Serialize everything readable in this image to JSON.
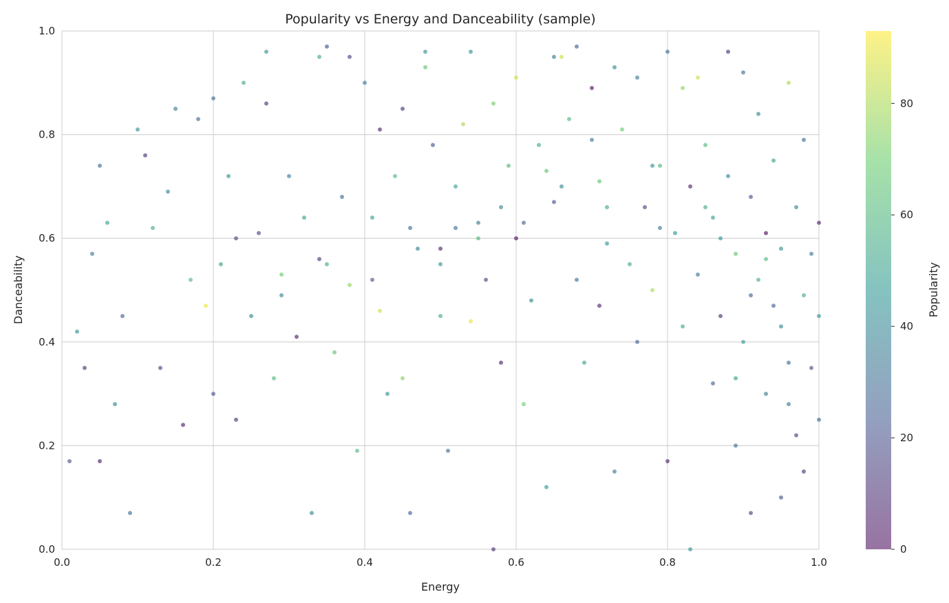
{
  "chart_data": {
    "type": "scatter",
    "title": "Popularity vs Energy and Danceability (sample)",
    "xlabel": "Energy",
    "ylabel": "Danceability",
    "xlim": [
      0,
      1
    ],
    "ylim": [
      0,
      1
    ],
    "xticks": [
      "0.0",
      "0.2",
      "0.4",
      "0.6",
      "0.8",
      "1.0"
    ],
    "yticks": [
      "0.0",
      "0.2",
      "0.4",
      "0.6",
      "0.8",
      "1.0"
    ],
    "grid": true,
    "colormap": "viridis",
    "point_alpha": 0.6,
    "colorbar": {
      "label": "Popularity",
      "range": [
        0,
        93
      ],
      "ticks": [
        "0",
        "20",
        "40",
        "60",
        "80"
      ]
    },
    "points_note_columns": [
      "energy",
      "danceability",
      "popularity"
    ],
    "points": [
      [
        0.01,
        0.17,
        20
      ],
      [
        0.02,
        0.42,
        45
      ],
      [
        0.03,
        0.35,
        10
      ],
      [
        0.04,
        0.57,
        35
      ],
      [
        0.05,
        0.74,
        30
      ],
      [
        0.05,
        0.17,
        5
      ],
      [
        0.06,
        0.63,
        50
      ],
      [
        0.07,
        0.28,
        40
      ],
      [
        0.08,
        0.45,
        25
      ],
      [
        0.09,
        0.07,
        30
      ],
      [
        0.1,
        0.81,
        45
      ],
      [
        0.11,
        0.76,
        10
      ],
      [
        0.12,
        0.62,
        55
      ],
      [
        0.13,
        0.35,
        15
      ],
      [
        0.14,
        0.69,
        40
      ],
      [
        0.15,
        0.85,
        35
      ],
      [
        0.16,
        0.24,
        5
      ],
      [
        0.17,
        0.52,
        60
      ],
      [
        0.18,
        0.83,
        30
      ],
      [
        0.19,
        0.47,
        90
      ],
      [
        0.2,
        0.87,
        30
      ],
      [
        0.2,
        0.3,
        20
      ],
      [
        0.21,
        0.55,
        50
      ],
      [
        0.22,
        0.72,
        45
      ],
      [
        0.23,
        0.25,
        10
      ],
      [
        0.24,
        0.9,
        55
      ],
      [
        0.25,
        0.45,
        40
      ],
      [
        0.26,
        0.61,
        15
      ],
      [
        0.27,
        0.96,
        45
      ],
      [
        0.27,
        0.86,
        10
      ],
      [
        0.28,
        0.33,
        60
      ],
      [
        0.29,
        0.53,
        70
      ],
      [
        0.3,
        0.72,
        35
      ],
      [
        0.31,
        0.41,
        5
      ],
      [
        0.32,
        0.64,
        50
      ],
      [
        0.33,
        0.07,
        40
      ],
      [
        0.34,
        0.56,
        10
      ],
      [
        0.34,
        0.95,
        55
      ],
      [
        0.35,
        0.97,
        20
      ],
      [
        0.36,
        0.38,
        65
      ],
      [
        0.37,
        0.68,
        30
      ],
      [
        0.38,
        0.95,
        15
      ],
      [
        0.38,
        0.51,
        75
      ],
      [
        0.39,
        0.19,
        60
      ],
      [
        0.4,
        0.9,
        35
      ],
      [
        0.41,
        0.64,
        50
      ],
      [
        0.42,
        0.46,
        85
      ],
      [
        0.42,
        0.81,
        5
      ],
      [
        0.43,
        0.3,
        45
      ],
      [
        0.44,
        0.72,
        60
      ],
      [
        0.45,
        0.85,
        10
      ],
      [
        0.45,
        0.33,
        75
      ],
      [
        0.46,
        0.07,
        25
      ],
      [
        0.47,
        0.58,
        40
      ],
      [
        0.48,
        0.96,
        45
      ],
      [
        0.48,
        0.93,
        65
      ],
      [
        0.49,
        0.78,
        20
      ],
      [
        0.5,
        0.58,
        5
      ],
      [
        0.5,
        0.45,
        55
      ],
      [
        0.51,
        0.19,
        30
      ],
      [
        0.52,
        0.7,
        50
      ],
      [
        0.53,
        0.82,
        80
      ],
      [
        0.54,
        0.96,
        45
      ],
      [
        0.54,
        0.44,
        90
      ],
      [
        0.55,
        0.63,
        35
      ],
      [
        0.56,
        0.52,
        15
      ],
      [
        0.57,
        0.86,
        70
      ],
      [
        0.57,
        0.0,
        10
      ],
      [
        0.58,
        0.36,
        5
      ],
      [
        0.59,
        0.74,
        60
      ],
      [
        0.6,
        0.91,
        85
      ],
      [
        0.6,
        0.6,
        0
      ],
      [
        0.61,
        0.28,
        70
      ],
      [
        0.62,
        0.48,
        40
      ],
      [
        0.63,
        0.78,
        55
      ],
      [
        0.64,
        0.12,
        45
      ],
      [
        0.65,
        0.95,
        35
      ],
      [
        0.65,
        0.67,
        20
      ],
      [
        0.66,
        0.95,
        85
      ],
      [
        0.67,
        0.83,
        60
      ],
      [
        0.68,
        0.52,
        30
      ],
      [
        0.68,
        0.97,
        25
      ],
      [
        0.69,
        0.36,
        50
      ],
      [
        0.7,
        0.89,
        0
      ],
      [
        0.71,
        0.71,
        65
      ],
      [
        0.71,
        0.47,
        5
      ],
      [
        0.72,
        0.59,
        45
      ],
      [
        0.73,
        0.93,
        40
      ],
      [
        0.73,
        0.15,
        35
      ],
      [
        0.74,
        0.81,
        70
      ],
      [
        0.75,
        0.55,
        55
      ],
      [
        0.76,
        0.4,
        25
      ],
      [
        0.76,
        0.91,
        35
      ],
      [
        0.77,
        0.66,
        15
      ],
      [
        0.78,
        0.5,
        80
      ],
      [
        0.79,
        0.74,
        60
      ],
      [
        0.8,
        0.96,
        30
      ],
      [
        0.8,
        0.17,
        5
      ],
      [
        0.81,
        0.61,
        45
      ],
      [
        0.82,
        0.89,
        75
      ],
      [
        0.82,
        0.43,
        55
      ],
      [
        0.83,
        0.7,
        5
      ],
      [
        0.83,
        0.0,
        45
      ],
      [
        0.84,
        0.91,
        85
      ],
      [
        0.84,
        0.53,
        35
      ],
      [
        0.85,
        0.78,
        60
      ],
      [
        0.86,
        0.32,
        25
      ],
      [
        0.86,
        0.64,
        50
      ],
      [
        0.87,
        0.45,
        10
      ],
      [
        0.88,
        0.96,
        10
      ],
      [
        0.88,
        0.72,
        40
      ],
      [
        0.89,
        0.57,
        65
      ],
      [
        0.89,
        0.2,
        30
      ],
      [
        0.9,
        0.92,
        30
      ],
      [
        0.9,
        0.4,
        50
      ],
      [
        0.91,
        0.68,
        20
      ],
      [
        0.91,
        0.07,
        15
      ],
      [
        0.92,
        0.52,
        55
      ],
      [
        0.92,
        0.84,
        40
      ],
      [
        0.93,
        0.61,
        0
      ],
      [
        0.93,
        0.3,
        35
      ],
      [
        0.94,
        0.75,
        50
      ],
      [
        0.94,
        0.47,
        25
      ],
      [
        0.95,
        0.1,
        20
      ],
      [
        0.95,
        0.58,
        45
      ],
      [
        0.96,
        0.9,
        80
      ],
      [
        0.96,
        0.36,
        30
      ],
      [
        0.97,
        0.66,
        40
      ],
      [
        0.97,
        0.22,
        15
      ],
      [
        0.98,
        0.49,
        55
      ],
      [
        0.98,
        0.79,
        30
      ],
      [
        0.98,
        0.15,
        10
      ],
      [
        0.99,
        0.57,
        35
      ],
      [
        0.99,
        0.35,
        20
      ],
      [
        1.0,
        0.63,
        5
      ],
      [
        1.0,
        0.25,
        30
      ],
      [
        1.0,
        0.45,
        45
      ],
      [
        0.93,
        0.56,
        60
      ],
      [
        0.87,
        0.6,
        45
      ],
      [
        0.79,
        0.62,
        35
      ],
      [
        0.72,
        0.66,
        55
      ],
      [
        0.66,
        0.7,
        40
      ],
      [
        0.61,
        0.63,
        25
      ],
      [
        0.55,
        0.6,
        60
      ],
      [
        0.5,
        0.55,
        45
      ],
      [
        0.46,
        0.62,
        30
      ],
      [
        0.41,
        0.52,
        20
      ],
      [
        0.35,
        0.55,
        55
      ],
      [
        0.29,
        0.49,
        40
      ],
      [
        0.23,
        0.6,
        15
      ],
      [
        0.95,
        0.43,
        40
      ],
      [
        0.91,
        0.49,
        25
      ],
      [
        0.85,
        0.66,
        55
      ],
      [
        0.78,
        0.74,
        45
      ],
      [
        0.7,
        0.79,
        35
      ],
      [
        0.64,
        0.73,
        65
      ],
      [
        0.58,
        0.66,
        40
      ],
      [
        0.52,
        0.62,
        30
      ],
      [
        0.96,
        0.28,
        35
      ],
      [
        0.89,
        0.33,
        50
      ]
    ]
  }
}
